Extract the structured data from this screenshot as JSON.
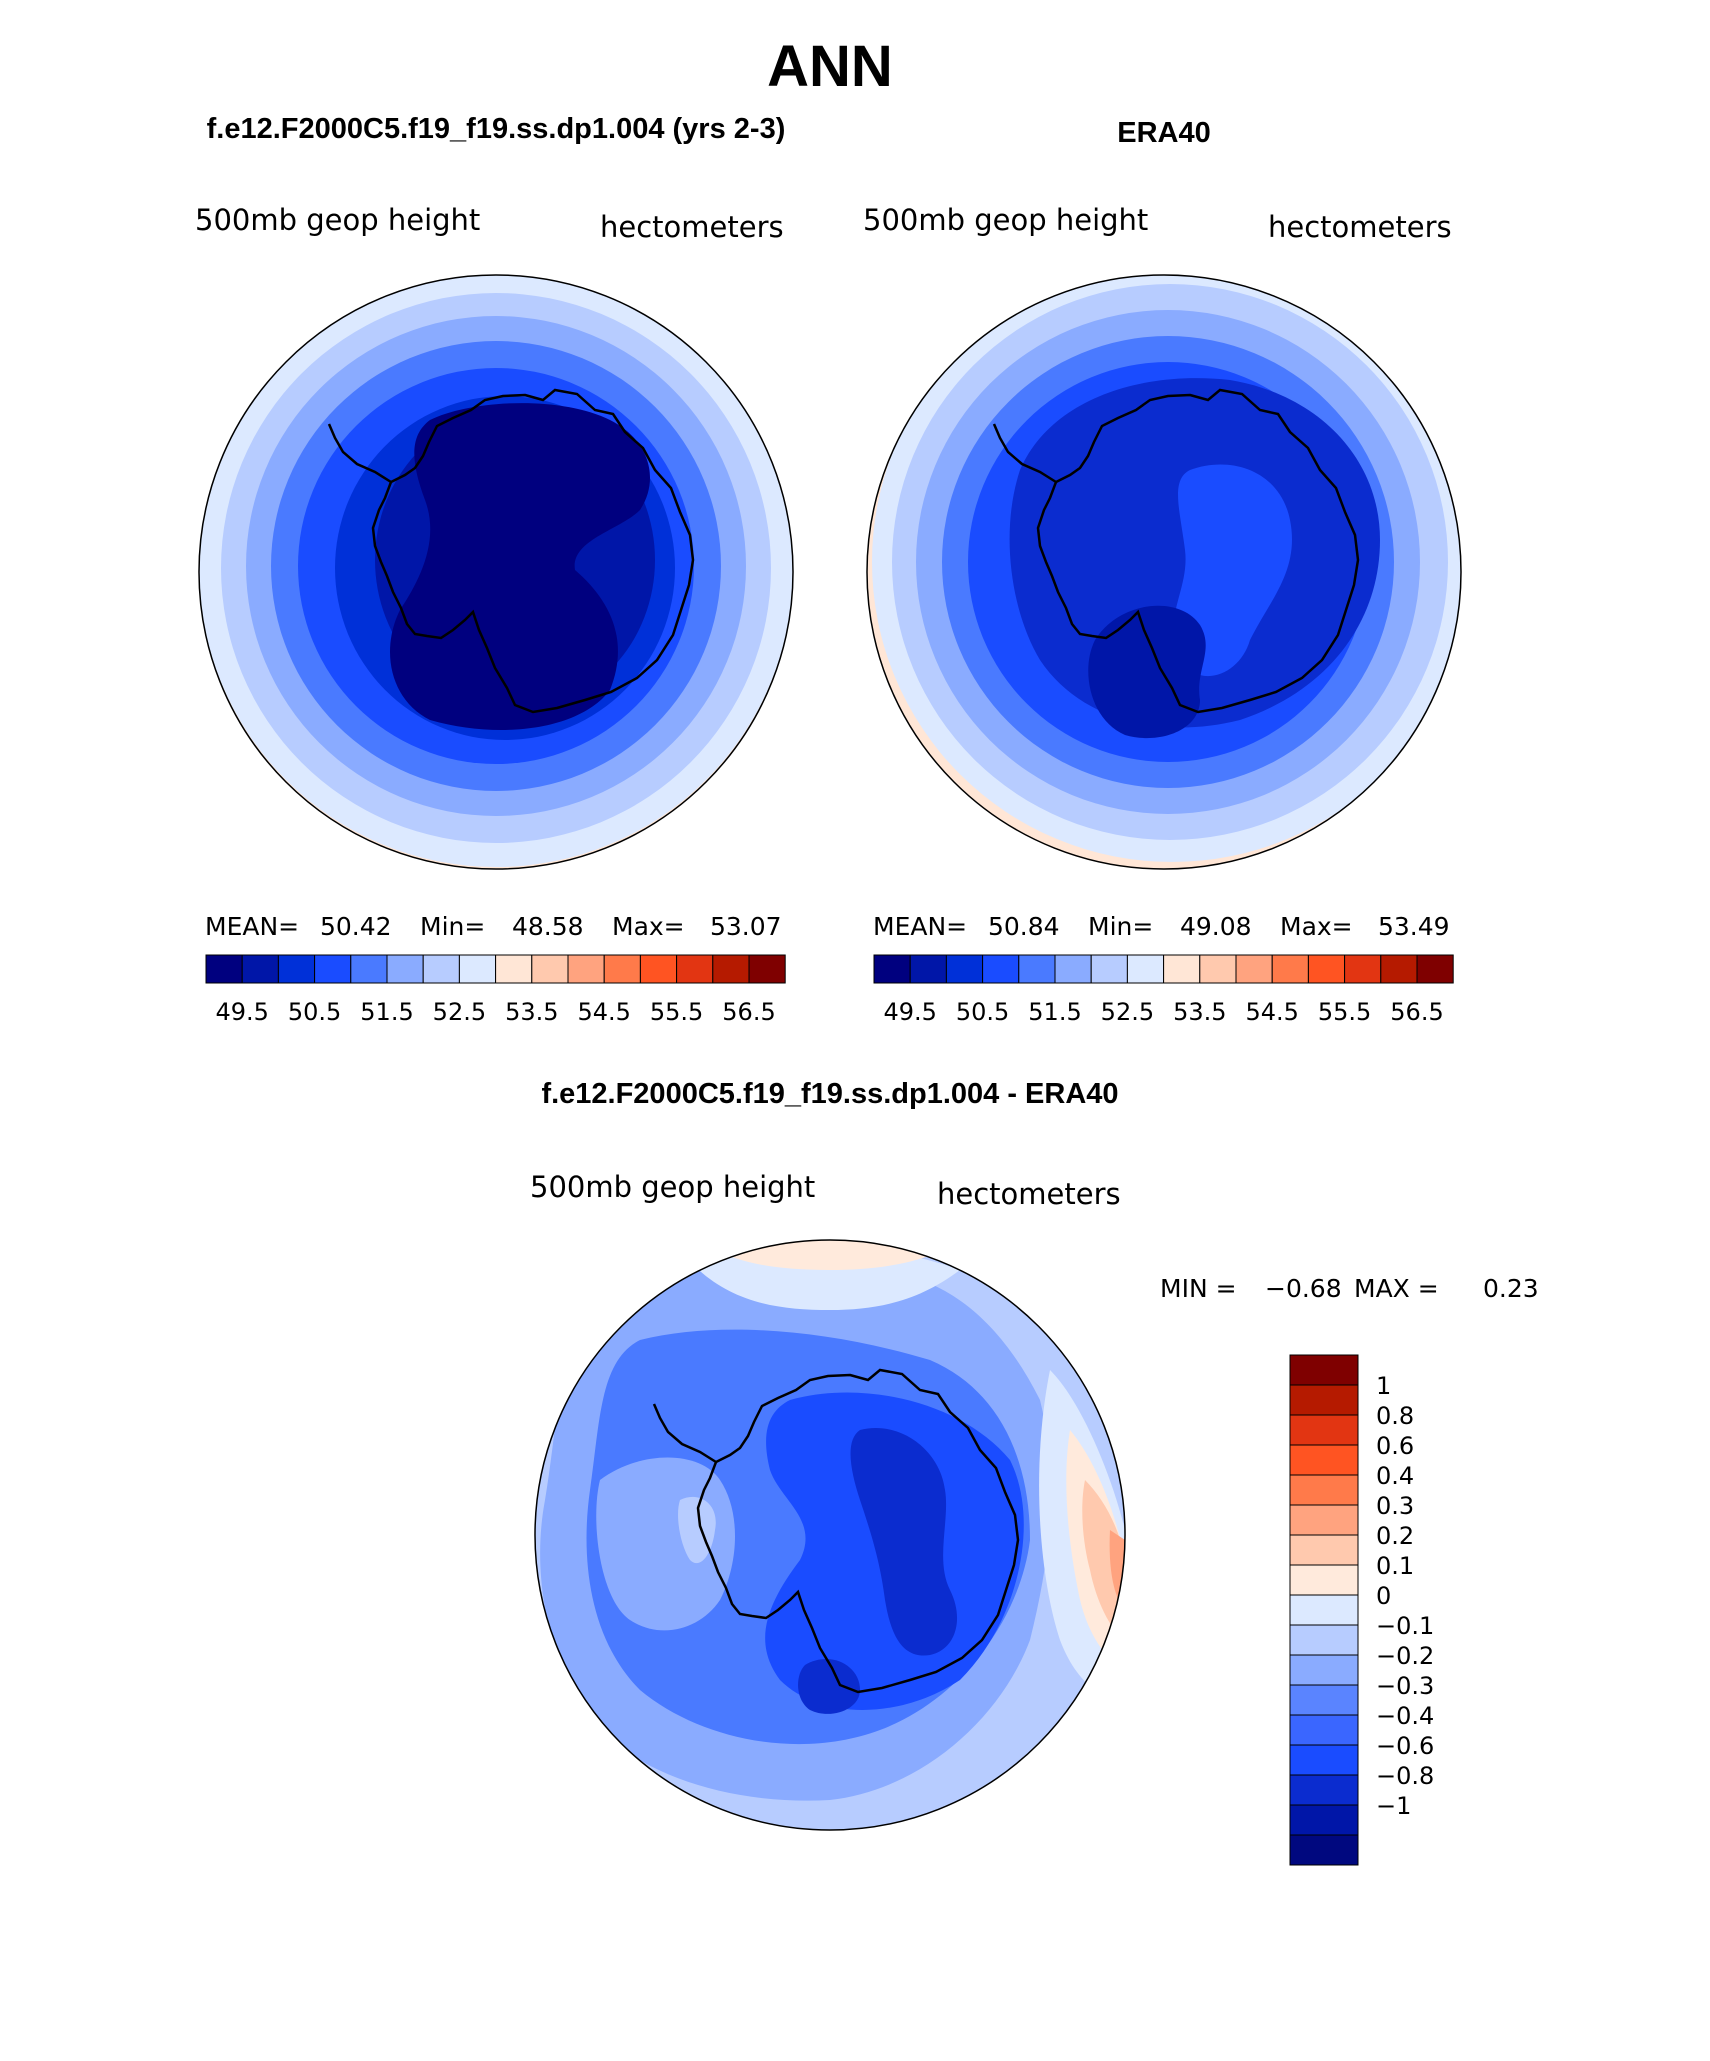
{
  "page_title": "ANN",
  "colors": {
    "abs_palette": [
      "#00007f",
      "#0016a8",
      "#0030d8",
      "#1a4cff",
      "#4a7aff",
      "#8aabff",
      "#b7ccff",
      "#dce9ff",
      "#ffe6d6",
      "#ffc9ae",
      "#ffa37f",
      "#ff7a4a",
      "#ff5422",
      "#e23512",
      "#b51a00",
      "#7f0000"
    ],
    "diff_palette": [
      "#00087f",
      "#0016a8",
      "#0b2ccf",
      "#1a4cff",
      "#3a66ff",
      "#5a84ff",
      "#8aabff",
      "#b7ccff",
      "#dce9ff",
      "#ffeadc",
      "#ffc9ae",
      "#ffa37f",
      "#ff7a4a",
      "#ff5422",
      "#e23512",
      "#b51a00",
      "#7f0000"
    ]
  },
  "chart_data": [
    {
      "type": "heatmap",
      "title": "f.e12.F2000C5.f19_f19.ss.dp1.004 (yrs 2-3)",
      "subtitle_left": "500mb geop height",
      "subtitle_right": "hectometers",
      "projection": "south polar stereographic",
      "stats": {
        "mean_label": "MEAN=",
        "mean": "50.42",
        "min_label": "Min=",
        "min": "48.58",
        "max_label": "Max=",
        "max": "53.07"
      },
      "colorbar_labels": [
        "49.5",
        "50.5",
        "51.5",
        "52.5",
        "53.5",
        "54.5",
        "55.5",
        "56.5"
      ],
      "contour_levels": [
        49,
        49.5,
        50,
        50.5,
        51,
        51.5,
        52,
        52.5,
        53,
        53.5,
        54,
        54.5,
        55,
        55.5,
        56,
        56.5,
        57
      ]
    },
    {
      "type": "heatmap",
      "title": "ERA40",
      "subtitle_left": "500mb geop height",
      "subtitle_right": "hectometers",
      "projection": "south polar stereographic",
      "stats": {
        "mean_label": "MEAN=",
        "mean": "50.84",
        "min_label": "Min=",
        "min": "49.08",
        "max_label": "Max=",
        "max": "53.49"
      },
      "colorbar_labels": [
        "49.5",
        "50.5",
        "51.5",
        "52.5",
        "53.5",
        "54.5",
        "55.5",
        "56.5"
      ],
      "contour_levels": [
        49,
        49.5,
        50,
        50.5,
        51,
        51.5,
        52,
        52.5,
        53,
        53.5,
        54,
        54.5,
        55,
        55.5,
        56,
        56.5,
        57
      ]
    },
    {
      "type": "heatmap",
      "title": "f.e12.F2000C5.f19_f19.ss.dp1.004 - ERA40",
      "subtitle_left": "500mb geop height",
      "subtitle_right": "hectometers",
      "projection": "south polar stereographic",
      "stats": {
        "min_label": "MIN =",
        "min": "−0.68",
        "max_label": "MAX =",
        "max": "0.23"
      },
      "colorbar_labels": [
        "1",
        "0.8",
        "0.6",
        "0.4",
        "0.3",
        "0.2",
        "0.1",
        "0",
        "−0.1",
        "−0.2",
        "−0.3",
        "−0.4",
        "−0.6",
        "−0.8",
        "−1"
      ]
    }
  ]
}
